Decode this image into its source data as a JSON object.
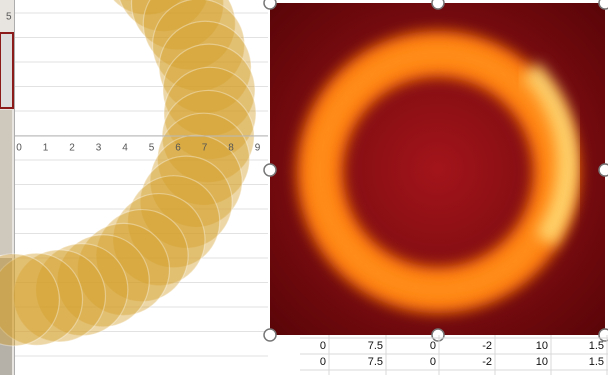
{
  "chart_axis": {
    "y_label": "5",
    "x_labels": [
      "0",
      "1",
      "2",
      "3",
      "4",
      "5",
      "6",
      "7",
      "8",
      "9"
    ]
  },
  "table": {
    "rows": [
      [
        "0",
        "7.5",
        "0",
        "-2",
        "10",
        "1.5"
      ],
      [
        "0",
        "7.5",
        "0",
        "-2",
        "10",
        "1.5"
      ]
    ]
  }
}
